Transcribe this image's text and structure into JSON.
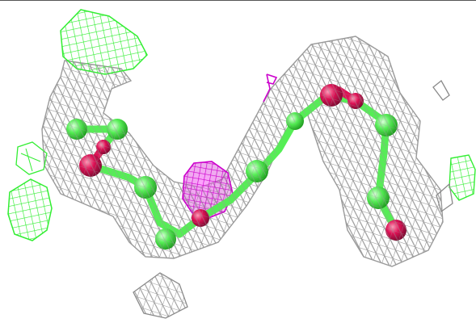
{
  "scene": {
    "background_color": "#ffffff",
    "density_mesh_color": "#9a9a9a",
    "positive_difference_color": "#33ee33",
    "negative_difference_color": "#cc00cc",
    "carbon_color": "#55ee55",
    "oxygen_color": "#dd1155",
    "stray_mesh_color": "#8a8a8a"
  }
}
